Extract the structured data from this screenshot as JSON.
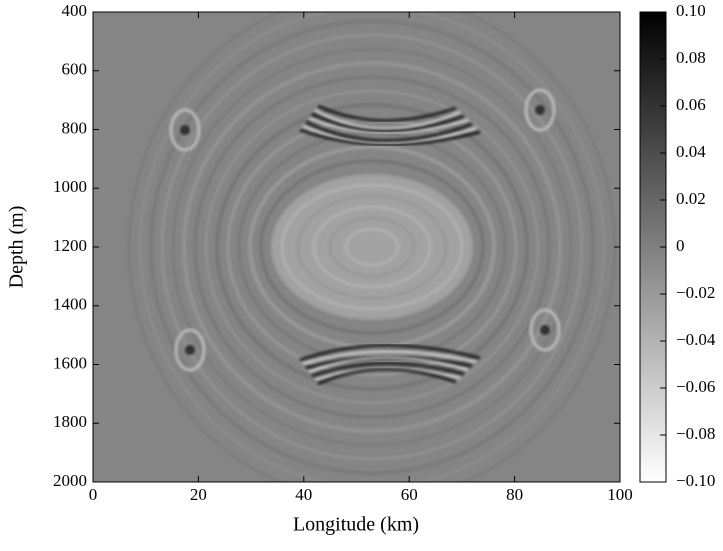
{
  "chart_data": {
    "type": "heatmap",
    "xlabel": "Longitude (km)",
    "ylabel": "Depth (m)",
    "xlim": [
      0,
      100
    ],
    "xticks": [
      0,
      20,
      40,
      60,
      80,
      100
    ],
    "ylim": [
      2000,
      400
    ],
    "yticks": [
      400,
      600,
      800,
      1000,
      1200,
      1400,
      1600,
      1800,
      2000
    ],
    "colormap": "Greys",
    "colorbar": {
      "lim": [
        -0.1,
        0.1
      ],
      "ticks": [
        {
          "value": 0.1,
          "label": "0.10"
        },
        {
          "value": 0.08,
          "label": "0.08"
        },
        {
          "value": 0.06,
          "label": "0.06"
        },
        {
          "value": 0.04,
          "label": "0.04"
        },
        {
          "value": 0.02,
          "label": "0.02"
        },
        0,
        {
          "value": -0.02,
          "label": "−0.02"
        },
        {
          "value": -0.04,
          "label": "−0.04"
        },
        {
          "value": -0.06,
          "label": "−0.06"
        },
        {
          "value": -0.08,
          "label": "−0.08"
        },
        {
          "value": -0.1,
          "label": "−0.10"
        }
      ]
    }
  }
}
